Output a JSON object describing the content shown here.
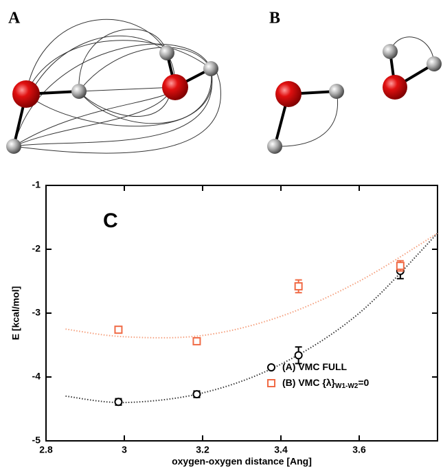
{
  "panels": {
    "a": "A",
    "b": "B"
  },
  "chart_data": {
    "type": "scatter",
    "label": "C",
    "xlabel": "oxygen-oxygen distance [Ang]",
    "ylabel": "E [kcal/mol]",
    "xlim": [
      2.8,
      3.8
    ],
    "ylim": [
      -5,
      -1
    ],
    "xticks": [
      2.8,
      3,
      3.2,
      3.4,
      3.6
    ],
    "yticks": [
      -5,
      -4,
      -3,
      -2,
      -1
    ],
    "series": [
      {
        "name": "(A) VMC FULL",
        "color": "#000000",
        "marker": "circle",
        "x": [
          2.985,
          3.185,
          3.445,
          3.705
        ],
        "values": [
          -4.39,
          -4.27,
          -3.66,
          -2.34
        ],
        "errors": [
          0.05,
          0.05,
          0.13,
          0.12
        ],
        "fit_x": [
          2.85,
          3.0,
          3.2,
          3.4,
          3.6,
          3.8
        ],
        "fit_values": [
          -4.3,
          -4.4,
          -4.25,
          -3.8,
          -3.0,
          -1.75
        ],
        "fit_color": "#333333"
      },
      {
        "name": "(B) VMC {λ}",
        "name_sub": "W1-W2",
        "name_end": "=0",
        "color": "#f06a45",
        "marker": "square",
        "x": [
          2.985,
          3.185,
          3.445,
          3.705
        ],
        "values": [
          -3.26,
          -3.44,
          -2.58,
          -2.26
        ],
        "errors": [
          0.03,
          0.03,
          0.1,
          0.08
        ],
        "fit_x": [
          2.85,
          3.0,
          3.2,
          3.4,
          3.6,
          3.8
        ],
        "fit_values": [
          -3.25,
          -3.37,
          -3.35,
          -3.05,
          -2.5,
          -1.75
        ],
        "fit_color": "#f5a07e"
      }
    ]
  }
}
